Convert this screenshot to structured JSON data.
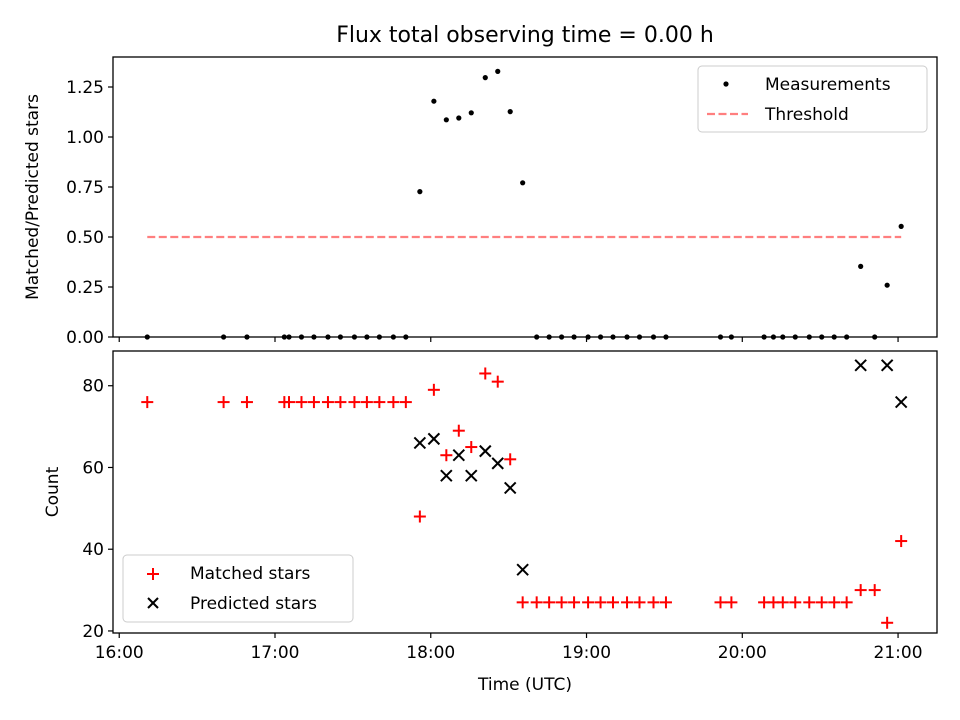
{
  "chart_data": [
    {
      "type": "scatter",
      "title": "Flux total observing time = 0.00 h",
      "xlabel": "",
      "ylabel": "Matched/Predicted stars",
      "xlim": [
        15.96,
        21.25
      ],
      "ylim": [
        0.0,
        1.4
      ],
      "yticks": [
        "0.00",
        "0.25",
        "0.50",
        "0.75",
        "1.00",
        "1.25"
      ],
      "legend_position": "top-right",
      "series": [
        {
          "name": "Measurements",
          "marker": "dot",
          "color": "#000000",
          "x": [
            16.18,
            16.67,
            16.82,
            17.06,
            17.09,
            17.17,
            17.25,
            17.34,
            17.42,
            17.51,
            17.59,
            17.67,
            17.76,
            17.84,
            17.93,
            18.02,
            18.1,
            18.18,
            18.26,
            18.35,
            18.43,
            18.51,
            18.59,
            18.68,
            18.76,
            18.84,
            18.92,
            19.01,
            19.09,
            19.17,
            19.26,
            19.34,
            19.43,
            19.51,
            19.86,
            19.93,
            20.14,
            20.2,
            20.26,
            20.34,
            20.43,
            20.51,
            20.59,
            20.67,
            20.76,
            20.85,
            20.93,
            21.02
          ],
          "y": [
            0,
            0,
            0,
            0,
            0,
            0,
            0,
            0,
            0,
            0,
            0,
            0,
            0,
            0,
            0.727,
            1.179,
            1.086,
            1.095,
            1.121,
            1.297,
            1.328,
            1.127,
            0.771,
            0,
            0,
            0,
            0,
            0,
            0,
            0,
            0,
            0,
            0,
            0,
            0,
            0,
            0,
            0,
            0,
            0,
            0,
            0,
            0,
            0,
            0.353,
            0,
            0.259,
            0.553
          ]
        },
        {
          "name": "Threshold",
          "marker": "dashed-line",
          "color": "#ff7f7f",
          "x": [
            16.18,
            21.02
          ],
          "y": [
            0.5,
            0.5
          ]
        }
      ]
    },
    {
      "type": "scatter",
      "title": "",
      "xlabel": "Time (UTC)",
      "ylabel": "Count",
      "xlim": [
        15.96,
        21.25
      ],
      "ylim": [
        19.5,
        88.5
      ],
      "yticks": [
        "20",
        "40",
        "60",
        "80"
      ],
      "xticks": [
        "16:00",
        "17:00",
        "18:00",
        "19:00",
        "20:00",
        "21:00"
      ],
      "legend_position": "bottom-left",
      "series": [
        {
          "name": "Matched stars",
          "marker": "plus",
          "color": "#ff0000",
          "x": [
            16.18,
            16.67,
            16.82,
            17.06,
            17.09,
            17.17,
            17.25,
            17.34,
            17.42,
            17.51,
            17.59,
            17.67,
            17.76,
            17.84,
            17.93,
            18.02,
            18.1,
            18.18,
            18.26,
            18.35,
            18.43,
            18.51,
            18.59,
            18.68,
            18.76,
            18.84,
            18.92,
            19.01,
            19.09,
            19.17,
            19.26,
            19.34,
            19.43,
            19.51,
            19.86,
            19.93,
            20.14,
            20.2,
            20.26,
            20.34,
            20.43,
            20.51,
            20.59,
            20.67,
            20.76,
            20.85,
            20.93,
            21.02
          ],
          "y": [
            76,
            76,
            76,
            76,
            76,
            76,
            76,
            76,
            76,
            76,
            76,
            76,
            76,
            76,
            48,
            79,
            63,
            69,
            65,
            83,
            81,
            62,
            27,
            27,
            27,
            27,
            27,
            27,
            27,
            27,
            27,
            27,
            27,
            27,
            27,
            27,
            27,
            27,
            27,
            27,
            27,
            27,
            27,
            27,
            30,
            30,
            22,
            42
          ]
        },
        {
          "name": "Predicted stars",
          "marker": "x",
          "color": "#000000",
          "x": [
            17.93,
            18.02,
            18.1,
            18.18,
            18.26,
            18.35,
            18.43,
            18.51,
            18.59,
            20.76,
            20.93,
            21.02
          ],
          "y": [
            66,
            67,
            58,
            63,
            58,
            64,
            61,
            55,
            35,
            85,
            85,
            76
          ]
        }
      ]
    }
  ]
}
